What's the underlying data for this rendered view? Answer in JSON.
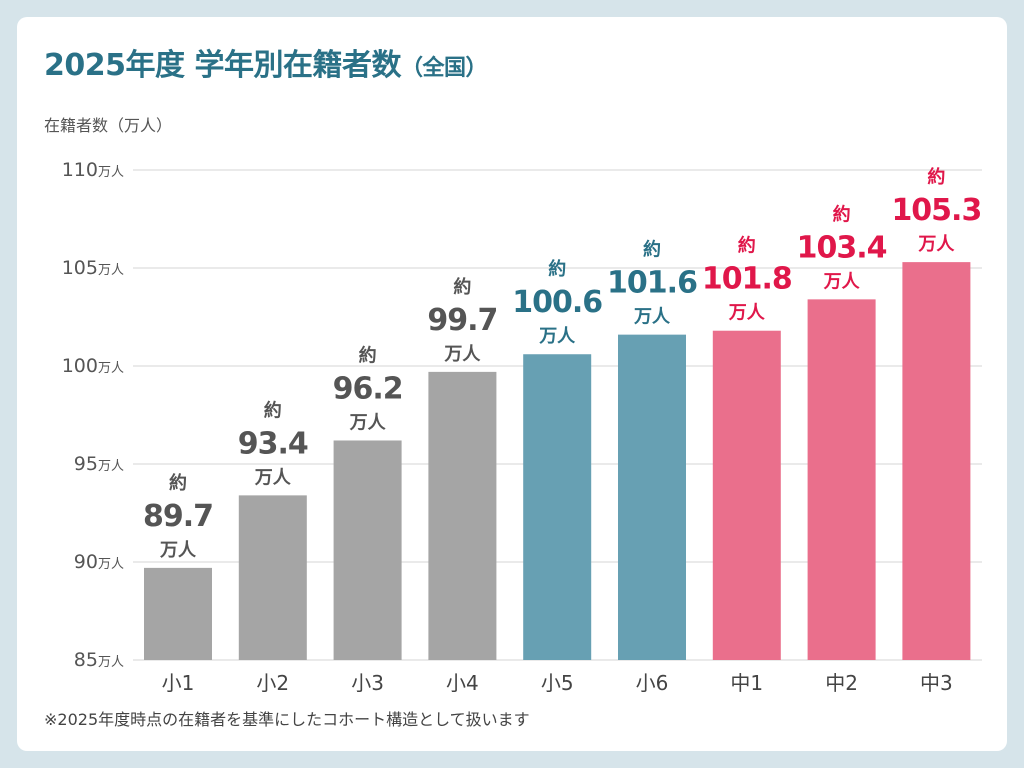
{
  "title": "2025年度 学年別在籍者数",
  "title_suffix": "（全国）",
  "footnote": "※2025年度時点の在籍者を基準にしたコホート構造として扱います",
  "chart_data": {
    "type": "bar",
    "title": "2025年度 学年別在籍者数（全国）",
    "ylabel": "在籍者数（万人）",
    "xlabel": "",
    "ylim": [
      85,
      110
    ],
    "yticks": [
      85,
      90,
      95,
      100,
      105,
      110
    ],
    "ytick_unit": "万人",
    "grid": true,
    "categories": [
      "小1",
      "小2",
      "小3",
      "小4",
      "小5",
      "小6",
      "中1",
      "中2",
      "中3"
    ],
    "values": [
      89.7,
      93.4,
      96.2,
      99.7,
      100.6,
      101.6,
      101.8,
      103.4,
      105.3
    ],
    "label_prefix": "約",
    "label_unit": "万人",
    "bar_colors": [
      "#a5a5a5",
      "#a5a5a5",
      "#a5a5a5",
      "#a5a5a5",
      "#67a0b3",
      "#67a0b3",
      "#ea6f8c",
      "#ea6f8c",
      "#ea6f8c"
    ],
    "label_colors": [
      "#555555",
      "#555555",
      "#555555",
      "#555555",
      "#2a7187",
      "#2a7187",
      "#e0174a",
      "#e0174a",
      "#e0174a"
    ]
  }
}
